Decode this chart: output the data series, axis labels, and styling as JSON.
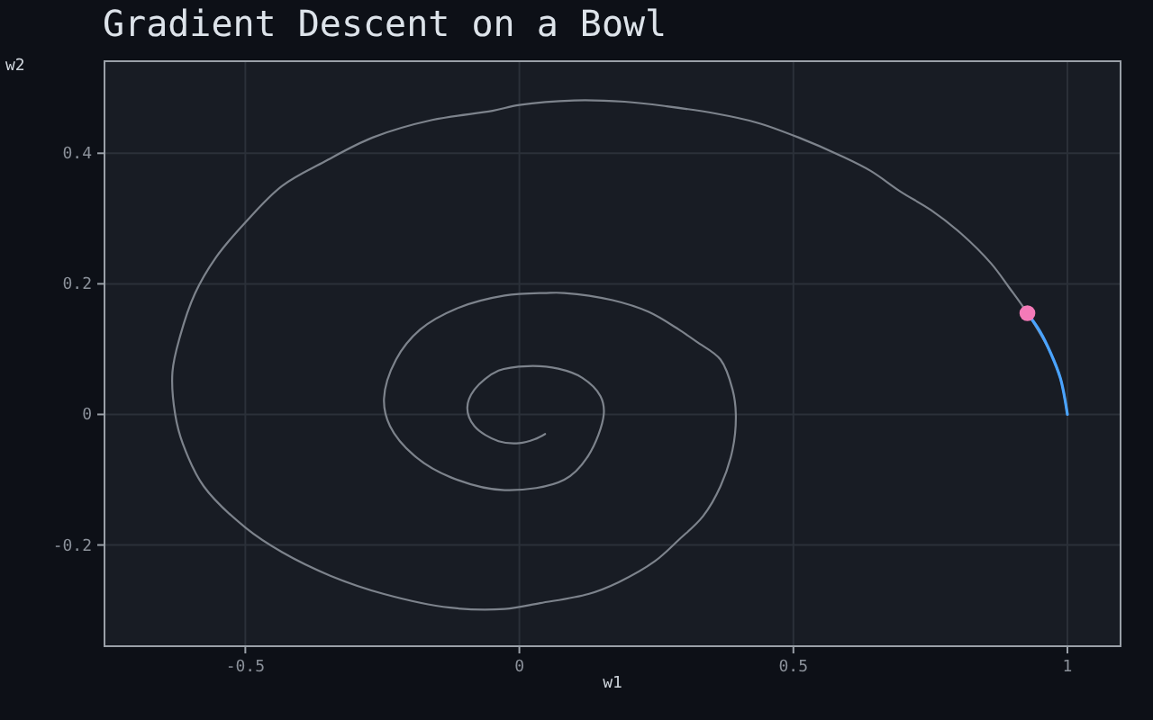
{
  "chart_data": {
    "type": "line",
    "title": "Gradient Descent on a Bowl",
    "xlabel": "w1",
    "ylabel": "w2",
    "xlim": [
      -0.757,
      1.097
    ],
    "ylim": [
      -0.355,
      0.541
    ],
    "xticks": [
      -0.5,
      0,
      0.5,
      1
    ],
    "yticks": [
      -0.2,
      0,
      0.2,
      0.4
    ],
    "grid": true,
    "series": [
      {
        "color": "#7d838c",
        "x": [
          1.0,
          0.987,
          0.97,
          0.927,
          0.894,
          0.861,
          0.806,
          0.751,
          0.696,
          0.641,
          0.587,
          0.51,
          0.433,
          0.357,
          0.269,
          0.192,
          0.1,
          0.0,
          -0.049,
          -0.159,
          -0.268,
          -0.356,
          -0.433,
          -0.499,
          -0.554,
          -0.592,
          -0.619,
          -0.633,
          -0.628,
          -0.614,
          -0.576,
          -0.499,
          -0.433,
          -0.345,
          -0.247,
          -0.126,
          -0.027,
          0.038,
          0.126,
          0.181,
          0.247,
          0.291,
          0.335,
          0.367,
          0.389,
          0.395,
          0.389,
          0.367,
          0.324,
          0.291,
          0.236,
          0.17,
          0.082,
          0.049,
          -0.027,
          -0.115,
          -0.181,
          -0.225,
          -0.247,
          -0.236,
          -0.192,
          -0.126,
          -0.027,
          0.082,
          0.126,
          0.154,
          0.148,
          0.115,
          0.071,
          0.016,
          -0.038,
          -0.082,
          -0.095,
          -0.082,
          -0.038,
          0.0,
          0.028,
          0.047
        ],
        "values": [
          0.0,
          0.056,
          0.093,
          0.155,
          0.194,
          0.231,
          0.277,
          0.313,
          0.341,
          0.373,
          0.396,
          0.424,
          0.447,
          0.461,
          0.472,
          0.479,
          0.481,
          0.474,
          0.465,
          0.451,
          0.424,
          0.387,
          0.35,
          0.295,
          0.24,
          0.185,
          0.12,
          0.065,
          0.0,
          -0.045,
          -0.11,
          -0.174,
          -0.211,
          -0.247,
          -0.275,
          -0.296,
          -0.298,
          -0.289,
          -0.275,
          -0.257,
          -0.225,
          -0.192,
          -0.156,
          -0.11,
          -0.054,
          0.0,
          0.038,
          0.084,
          0.111,
          0.13,
          0.157,
          0.175,
          0.186,
          0.186,
          0.182,
          0.162,
          0.13,
          0.084,
          0.024,
          -0.018,
          -0.063,
          -0.096,
          -0.116,
          -0.1,
          -0.063,
          0.0,
          0.028,
          0.056,
          0.07,
          0.074,
          0.067,
          0.038,
          0.01,
          -0.018,
          -0.041,
          -0.044,
          -0.038,
          -0.03
        ]
      },
      {
        "color": "#4aa3ff",
        "x": [
          1.0,
          0.994,
          0.987,
          0.97,
          0.95,
          0.927
        ],
        "values": [
          0.0,
          0.03,
          0.056,
          0.093,
          0.127,
          0.155
        ]
      },
      {
        "type": "scatter",
        "color": "#f47ab8",
        "marker": "circle",
        "x": [
          0.927
        ],
        "values": [
          0.155
        ]
      }
    ]
  }
}
